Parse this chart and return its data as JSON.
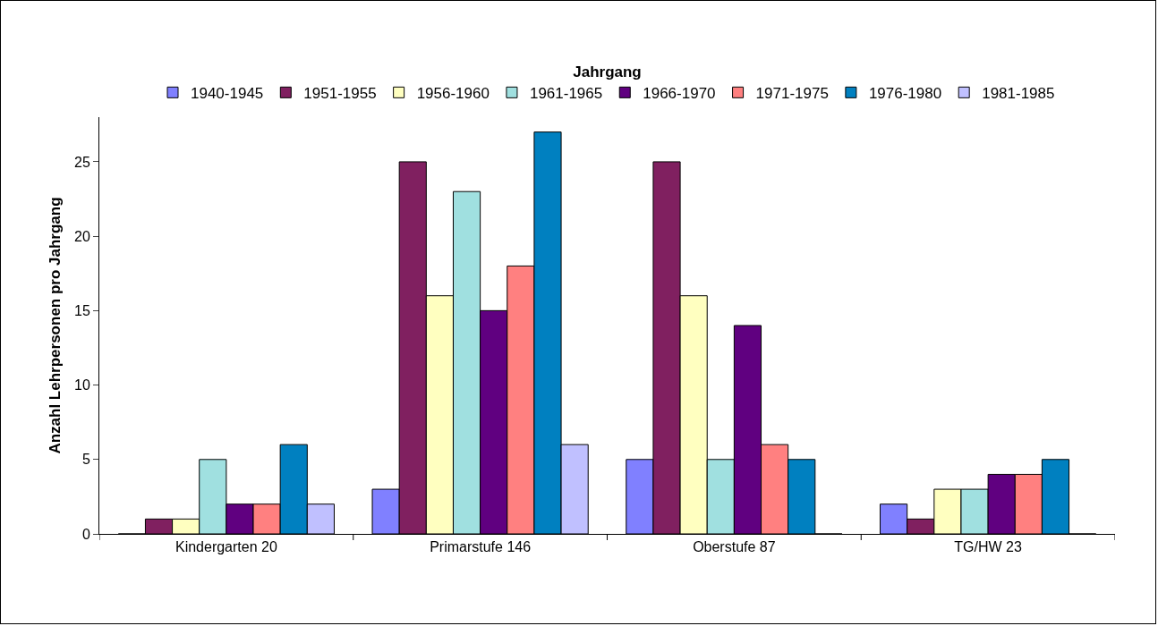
{
  "chart_data": {
    "type": "bar",
    "legend_title": "Jahrgang",
    "ylabel": "Anzahl Lehrpersonen pro Jahrgang",
    "categories": [
      "Kindergarten 20",
      "Primarstufe 146",
      "Oberstufe 87",
      "TG/HW 23"
    ],
    "series": [
      {
        "name": "1940-1945",
        "color": "#8080ff",
        "values": [
          0,
          3,
          5,
          2
        ]
      },
      {
        "name": "1951-1955",
        "color": "#802060",
        "values": [
          1,
          25,
          25,
          1
        ]
      },
      {
        "name": "1956-1960",
        "color": "#ffffc0",
        "values": [
          1,
          16,
          16,
          3
        ]
      },
      {
        "name": "1961-1965",
        "color": "#a0e0e0",
        "values": [
          5,
          23,
          5,
          3
        ]
      },
      {
        "name": "1966-1970",
        "color": "#600080",
        "values": [
          2,
          15,
          14,
          4
        ]
      },
      {
        "name": "1971-1975",
        "color": "#ff8080",
        "values": [
          2,
          18,
          6,
          4
        ]
      },
      {
        "name": "1976-1980",
        "color": "#0080c0",
        "values": [
          6,
          27,
          5,
          5
        ]
      },
      {
        "name": "1981-1985",
        "color": "#c0c0ff",
        "values": [
          2,
          6,
          0,
          0
        ]
      }
    ],
    "ylim": [
      0,
      28
    ],
    "yticks": [
      0,
      5,
      10,
      15,
      20,
      25
    ],
    "grid": false,
    "legend": "top"
  }
}
